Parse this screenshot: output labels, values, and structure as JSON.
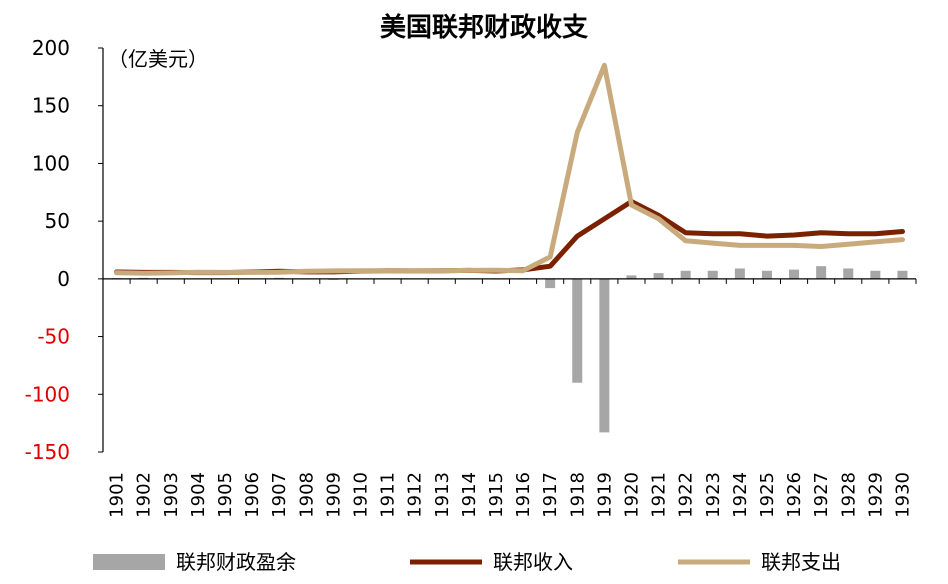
{
  "chart_data": {
    "type": "bar+line",
    "title": "美国联邦财政收支",
    "unit_label": "（亿美元）",
    "ylim": [
      -150,
      200
    ],
    "yticks": [
      200,
      150,
      100,
      50,
      0,
      -50,
      -100,
      -150
    ],
    "categories": [
      "1901",
      "1902",
      "1903",
      "1904",
      "1905",
      "1906",
      "1907",
      "1908",
      "1909",
      "1910",
      "1911",
      "1912",
      "1913",
      "1914",
      "1915",
      "1916",
      "1917",
      "1918",
      "1919",
      "1920",
      "1921",
      "1922",
      "1923",
      "1924",
      "1925",
      "1926",
      "1927",
      "1928",
      "1929",
      "1930"
    ],
    "series": [
      {
        "name": "联邦财政盈余",
        "kind": "bar",
        "color": "#a6a6a6",
        "values": [
          0.6,
          0.9,
          0.4,
          -0.4,
          -0.2,
          0.3,
          0.9,
          -0.6,
          -0.9,
          -0.2,
          0.1,
          0.0,
          0.0,
          0.0,
          -0.6,
          0.5,
          -8,
          -90,
          -133,
          3,
          5,
          7,
          7,
          9,
          7,
          8,
          11,
          9,
          7,
          7
        ]
      },
      {
        "name": "联邦收入",
        "kind": "line",
        "color": "#7b2100",
        "values": [
          5.9,
          5.6,
          5.6,
          5.4,
          5.4,
          5.9,
          6.6,
          6.0,
          6.0,
          6.8,
          7.0,
          6.9,
          7.1,
          7.3,
          6.8,
          7.8,
          11,
          37,
          52,
          67,
          55,
          40,
          39,
          39,
          37,
          38,
          40,
          39,
          39,
          41
        ]
      },
      {
        "name": "联邦支出",
        "kind": "line",
        "color": "#c9aa7c",
        "values": [
          5.3,
          4.8,
          5.2,
          5.8,
          5.6,
          5.6,
          5.8,
          6.6,
          6.9,
          7.0,
          6.9,
          6.9,
          7.1,
          7.3,
          7.4,
          7.1,
          19,
          127,
          185,
          64,
          52,
          33,
          31,
          29,
          29,
          29,
          28,
          30,
          32,
          34
        ]
      }
    ]
  }
}
